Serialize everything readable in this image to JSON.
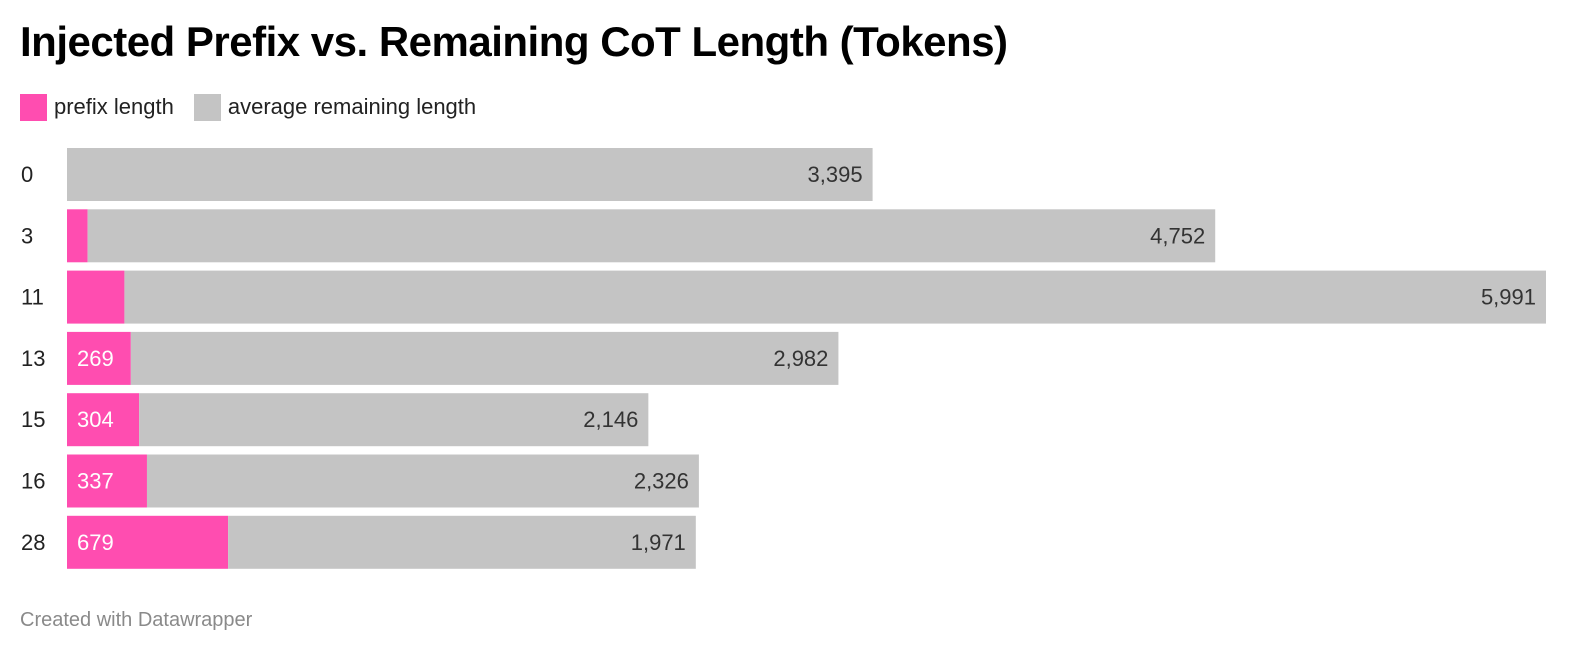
{
  "chart_data": {
    "type": "bar",
    "orientation": "horizontal",
    "stacked": true,
    "title": "Injected Prefix vs. Remaining CoT Length (Tokens)",
    "categories": [
      "0",
      "3",
      "11",
      "13",
      "15",
      "16",
      "28"
    ],
    "series": [
      {
        "name": "prefix length",
        "color": "#ff4db0",
        "values": [
          0,
          87,
          242,
          269,
          304,
          337,
          679
        ],
        "labels": [
          "",
          "",
          "",
          "269",
          "304",
          "337",
          "679"
        ]
      },
      {
        "name": "average remaining length",
        "color": "#c4c4c4",
        "values": [
          3395,
          4752,
          5991,
          2982,
          2146,
          2326,
          1971
        ],
        "labels": [
          "3,395",
          "4,752",
          "5,991",
          "2,982",
          "2,146",
          "2,326",
          "1,971"
        ]
      }
    ],
    "legend_position": "top-left",
    "grid": false
  },
  "footer": {
    "credit": "Created with Datawrapper"
  }
}
